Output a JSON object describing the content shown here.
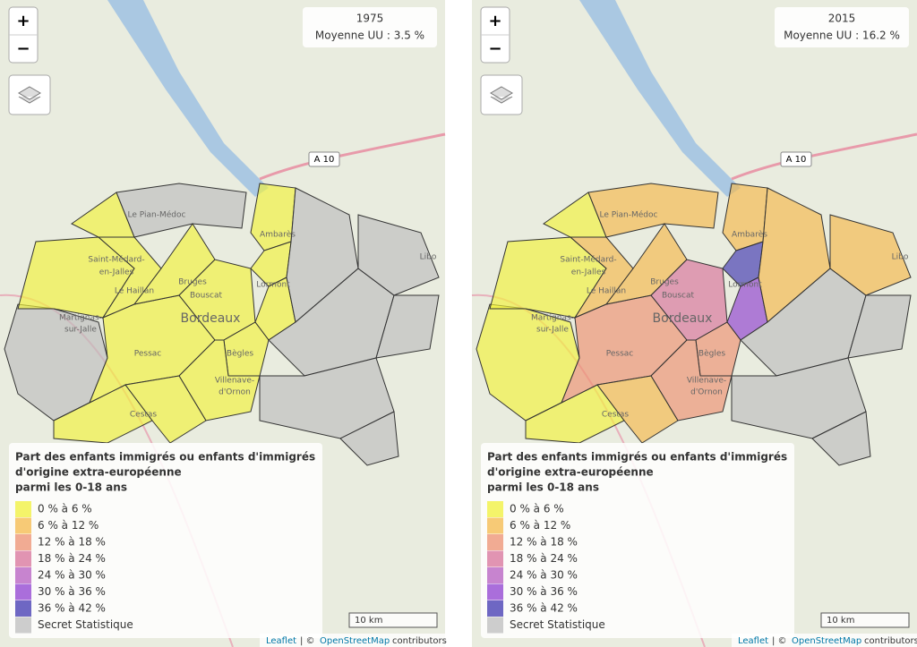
{
  "maps": [
    {
      "year": "1975",
      "average": "Moyenne UU : 3.5 %"
    },
    {
      "year": "2015",
      "average": "Moyenne UU : 16.2 %"
    }
  ],
  "controls": {
    "zoom_in": "+",
    "zoom_out": "−"
  },
  "legend": {
    "title": [
      "Part des enfants immigrés ou enfants d'immigrés",
      "d'origine extra-européenne",
      "parmi les 0-18 ans"
    ],
    "items": [
      {
        "label": "0 % à 6 %",
        "color": "#f2f23a"
      },
      {
        "label": "6 % à 12 %",
        "color": "#f6b94a"
      },
      {
        "label": "12 % à 18 %",
        "color": "#ee9070"
      },
      {
        "label": "18 % à 24 %",
        "color": "#d8729a"
      },
      {
        "label": "24 % à 30 %",
        "color": "#b65cc0"
      },
      {
        "label": "30 % à 36 %",
        "color": "#8f3fd0"
      },
      {
        "label": "36 % à 42 %",
        "color": "#3f35b0"
      },
      {
        "label": "Secret Statistique",
        "color": "#bdbdbd"
      }
    ]
  },
  "place_labels": [
    "Le Pian-Médoc",
    "Saint-Médard-",
    "en-Jalles",
    "Le Haillan",
    "Martignas-",
    "sur-Jalle",
    "Bruges",
    "Bouscat",
    "Bordeaux",
    "Pessac",
    "Bègles",
    "Villenave-",
    "d'Ornon",
    "Cestas",
    "Ambarès",
    "Lormont",
    "Libo"
  ],
  "road": "A 10",
  "scale": "10 km",
  "attribution": {
    "leaflet": "Leaflet",
    "sep": "| ©",
    "osm": "OpenStreetMap",
    "suffix": "contributors"
  }
}
